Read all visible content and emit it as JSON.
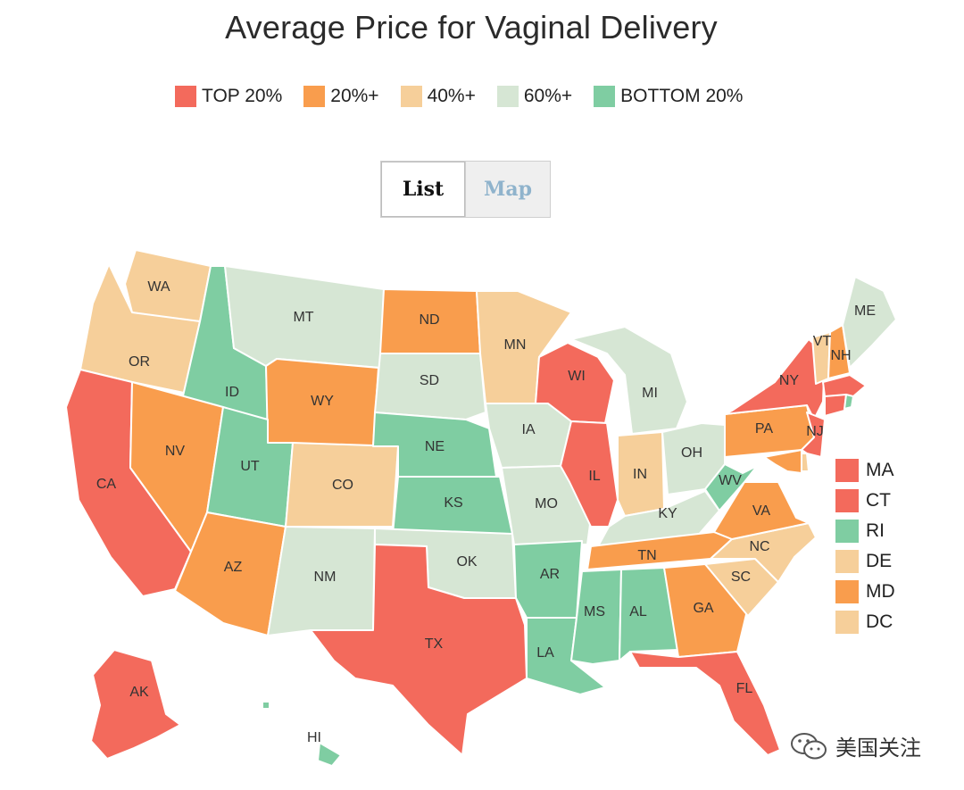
{
  "title": "Average Price for Vaginal Delivery",
  "colors": {
    "top20": "#f36a5c",
    "p20": "#f99d4d",
    "p40": "#f6cf9a",
    "p60": "#d6e6d4",
    "bottom20": "#7fcda2",
    "border": "#ffffff"
  },
  "legend": [
    {
      "label": "TOP 20%",
      "color": "#f36a5c"
    },
    {
      "label": "20%+",
      "color": "#f99d4d"
    },
    {
      "label": "40%+",
      "color": "#f6cf9a"
    },
    {
      "label": "60%+",
      "color": "#d6e6d4"
    },
    {
      "label": "BOTTOM 20%",
      "color": "#7fcda2"
    }
  ],
  "tabs": {
    "list": "List",
    "map": "Map"
  },
  "small_states": [
    {
      "abbr": "MA",
      "color": "#f36a5c"
    },
    {
      "abbr": "CT",
      "color": "#f36a5c"
    },
    {
      "abbr": "RI",
      "color": "#7fcda2"
    },
    {
      "abbr": "DE",
      "color": "#f6cf9a"
    },
    {
      "abbr": "MD",
      "color": "#f99d4d"
    },
    {
      "abbr": "DC",
      "color": "#f6cf9a"
    }
  ],
  "states": [
    {
      "abbr": "WA",
      "tier": "p40"
    },
    {
      "abbr": "OR",
      "tier": "p40"
    },
    {
      "abbr": "CA",
      "tier": "top20"
    },
    {
      "abbr": "ID",
      "tier": "bottom20"
    },
    {
      "abbr": "NV",
      "tier": "p20"
    },
    {
      "abbr": "MT",
      "tier": "p60"
    },
    {
      "abbr": "WY",
      "tier": "p20"
    },
    {
      "abbr": "UT",
      "tier": "bottom20"
    },
    {
      "abbr": "AZ",
      "tier": "p20"
    },
    {
      "abbr": "CO",
      "tier": "p40"
    },
    {
      "abbr": "NM",
      "tier": "p60"
    },
    {
      "abbr": "ND",
      "tier": "p20"
    },
    {
      "abbr": "SD",
      "tier": "p60"
    },
    {
      "abbr": "NE",
      "tier": "bottom20"
    },
    {
      "abbr": "KS",
      "tier": "bottom20"
    },
    {
      "abbr": "OK",
      "tier": "p60"
    },
    {
      "abbr": "TX",
      "tier": "top20"
    },
    {
      "abbr": "MN",
      "tier": "p40"
    },
    {
      "abbr": "IA",
      "tier": "p60"
    },
    {
      "abbr": "MO",
      "tier": "p60"
    },
    {
      "abbr": "AR",
      "tier": "bottom20"
    },
    {
      "abbr": "LA",
      "tier": "bottom20"
    },
    {
      "abbr": "WI",
      "tier": "top20"
    },
    {
      "abbr": "IL",
      "tier": "top20"
    },
    {
      "abbr": "MI",
      "tier": "p60"
    },
    {
      "abbr": "IN",
      "tier": "p40"
    },
    {
      "abbr": "OH",
      "tier": "p60"
    },
    {
      "abbr": "KY",
      "tier": "p60"
    },
    {
      "abbr": "TN",
      "tier": "p20"
    },
    {
      "abbr": "MS",
      "tier": "bottom20"
    },
    {
      "abbr": "AL",
      "tier": "bottom20"
    },
    {
      "abbr": "GA",
      "tier": "p20"
    },
    {
      "abbr": "FL",
      "tier": "top20"
    },
    {
      "abbr": "SC",
      "tier": "p40"
    },
    {
      "abbr": "NC",
      "tier": "p40"
    },
    {
      "abbr": "VA",
      "tier": "p20"
    },
    {
      "abbr": "WV",
      "tier": "bottom20"
    },
    {
      "abbr": "PA",
      "tier": "p20"
    },
    {
      "abbr": "NY",
      "tier": "top20"
    },
    {
      "abbr": "NJ",
      "tier": "top20"
    },
    {
      "abbr": "VT",
      "tier": "p40"
    },
    {
      "abbr": "NH",
      "tier": "p20"
    },
    {
      "abbr": "ME",
      "tier": "p60"
    },
    {
      "abbr": "AK",
      "tier": "top20"
    },
    {
      "abbr": "HI",
      "tier": "bottom20"
    },
    {
      "abbr": "MA",
      "tier": "top20"
    },
    {
      "abbr": "CT",
      "tier": "top20"
    },
    {
      "abbr": "RI",
      "tier": "bottom20"
    },
    {
      "abbr": "DE",
      "tier": "p40"
    },
    {
      "abbr": "MD",
      "tier": "p20"
    }
  ],
  "watermark": {
    "text": "美国关注",
    "icon": "wechat-icon"
  }
}
